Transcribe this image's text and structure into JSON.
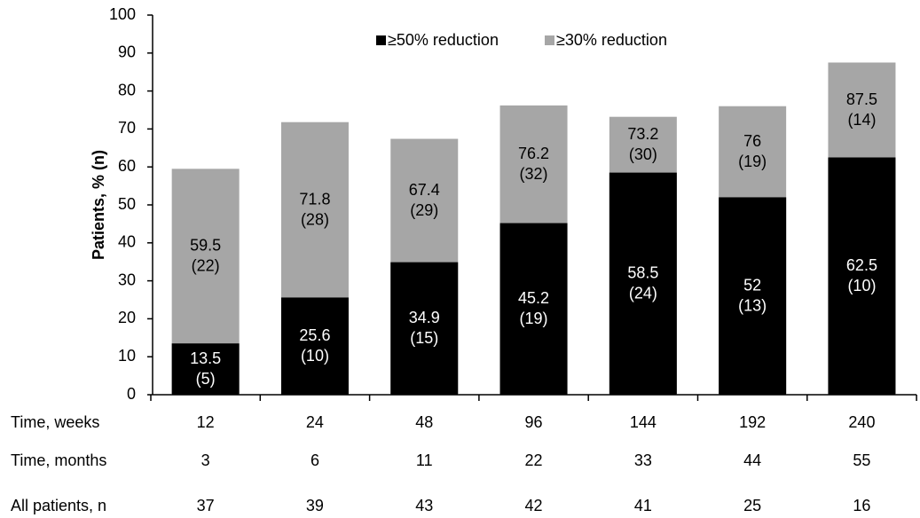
{
  "chart_data": {
    "type": "bar",
    "y_label": "Patients, % (n)",
    "category_title": "Time, weeks",
    "categories": [
      "12",
      "24",
      "48",
      "96",
      "144",
      "192",
      "240"
    ],
    "series": [
      {
        "name": "≥30% reduction",
        "color": "#a6a6a6",
        "values": [
          59.5,
          71.8,
          67.4,
          76.2,
          73.2,
          76,
          87.5
        ],
        "count_labels": [
          "(22)",
          "(28)",
          "(29)",
          "(32)",
          "(30)",
          "(19)",
          "(14)"
        ]
      },
      {
        "name": "≥50% reduction",
        "color": "#000000",
        "values": [
          13.5,
          25.6,
          34.9,
          45.2,
          58.5,
          52,
          62.5
        ],
        "count_labels": [
          "(5)",
          "(10)",
          "(15)",
          "(19)",
          "(24)",
          "(13)",
          "(10)"
        ]
      }
    ],
    "extra_rows": [
      {
        "label": "Time, months",
        "values": [
          3,
          6,
          11,
          22,
          33,
          44,
          55
        ]
      },
      {
        "label": "All patients, n",
        "values": [
          37,
          39,
          43,
          42,
          41,
          25,
          16
        ]
      }
    ],
    "ylim": [
      0,
      100
    ],
    "yticks": [
      0,
      10,
      20,
      30,
      40,
      50,
      60,
      70,
      80,
      90,
      100
    ]
  }
}
